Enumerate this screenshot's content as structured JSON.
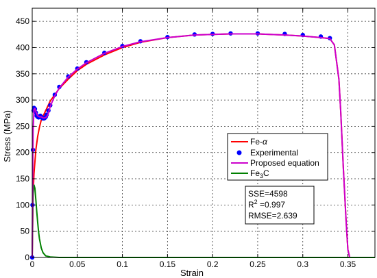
{
  "chart_data": {
    "type": "line",
    "xlabel": "Strain",
    "ylabel": "Stress (MPa)",
    "xlim": [
      0,
      0.38
    ],
    "ylim": [
      0,
      475
    ],
    "xticks": [
      0,
      0.05,
      0.1,
      0.15,
      0.2,
      0.25,
      0.3,
      0.35
    ],
    "xtick_labels": [
      "0",
      "0.05",
      "0.1",
      "0.15",
      "0.2",
      "0.25",
      "0.3",
      "0.35"
    ],
    "yticks": [
      0,
      50,
      100,
      150,
      200,
      250,
      300,
      350,
      400,
      450
    ],
    "ytick_labels": [
      "0",
      "50",
      "100",
      "150",
      "200",
      "250",
      "300",
      "350",
      "400",
      "450"
    ],
    "grid": true,
    "legend_position": "center-right",
    "series": [
      {
        "name": "Fe-α",
        "legend_main": "Fe-",
        "legend_greek": "α",
        "color": "#ff0000",
        "style": "line",
        "x": [
          0,
          0.001,
          0.002,
          0.004,
          0.006,
          0.008,
          0.01,
          0.015,
          0.02,
          0.03,
          0.04,
          0.05,
          0.06,
          0.08,
          0.1,
          0.12,
          0.15,
          0.18,
          0.2,
          0.22,
          0.25,
          0.28,
          0.3,
          0.32,
          0.33,
          0.335,
          0.34,
          0.342,
          0.345,
          0.348,
          0.35,
          0.352
        ],
        "y": [
          0,
          120,
          160,
          205,
          230,
          248,
          262,
          280,
          298,
          322,
          340,
          356,
          368,
          386,
          400,
          410,
          419,
          424,
          425,
          426,
          426,
          424,
          422,
          419,
          417,
          405,
          340,
          280,
          170,
          70,
          15,
          0
        ]
      },
      {
        "name": "Experimental",
        "color": "#0000ff",
        "style": "markers",
        "x": [
          0,
          0.0003,
          0.0008,
          0.0015,
          0.002,
          0.003,
          0.004,
          0.005,
          0.006,
          0.007,
          0.008,
          0.009,
          0.01,
          0.011,
          0.012,
          0.013,
          0.014,
          0.015,
          0.016,
          0.018,
          0.02,
          0.025,
          0.03,
          0.04,
          0.05,
          0.06,
          0.08,
          0.1,
          0.12,
          0.15,
          0.18,
          0.2,
          0.22,
          0.25,
          0.28,
          0.3,
          0.32,
          0.33
        ],
        "y": [
          0,
          100,
          205,
          280,
          285,
          283,
          276,
          270,
          268,
          267,
          268,
          270,
          268,
          266,
          265,
          265,
          266,
          268,
          272,
          280,
          290,
          310,
          325,
          345,
          360,
          372,
          390,
          403,
          412,
          420,
          425,
          426,
          427,
          427,
          426,
          424,
          421,
          418
        ]
      },
      {
        "name": "Proposed equation",
        "color": "#cc00cc",
        "style": "line",
        "x": [
          0,
          0.0005,
          0.001,
          0.002,
          0.003,
          0.004,
          0.006,
          0.008,
          0.01,
          0.012,
          0.014,
          0.016,
          0.018,
          0.02,
          0.025,
          0.03,
          0.04,
          0.05,
          0.06,
          0.08,
          0.1,
          0.12,
          0.15,
          0.18,
          0.2,
          0.22,
          0.25,
          0.28,
          0.3,
          0.32,
          0.33,
          0.335,
          0.34,
          0.342,
          0.345,
          0.348,
          0.35,
          0.352
        ],
        "y": [
          0,
          150,
          240,
          282,
          284,
          278,
          270,
          268,
          268,
          266,
          266,
          268,
          275,
          288,
          308,
          323,
          344,
          359,
          371,
          389,
          402,
          411,
          419,
          424,
          425,
          426,
          426,
          424,
          422,
          419,
          417,
          405,
          340,
          280,
          170,
          70,
          15,
          0
        ]
      },
      {
        "name": "Fe3C",
        "legend_main": "Fe",
        "legend_sub": "3",
        "legend_tail": "C",
        "color": "#008000",
        "style": "line",
        "x": [
          0,
          0.0005,
          0.001,
          0.0015,
          0.002,
          0.003,
          0.004,
          0.005,
          0.006,
          0.007,
          0.008,
          0.01,
          0.012,
          0.015,
          0.02,
          0.03,
          0.05,
          0.1,
          0.2,
          0.3,
          0.38
        ],
        "y": [
          0,
          80,
          118,
          132,
          138,
          132,
          110,
          88,
          68,
          50,
          36,
          18,
          9,
          3,
          1,
          0,
          0,
          0,
          0,
          0,
          0
        ]
      }
    ],
    "stats": {
      "sse": "SSE=4598",
      "r2_main": "R",
      "r2_sup": "2",
      "r2_value": " =0.997",
      "rmse": "RMSE=2.639"
    }
  }
}
